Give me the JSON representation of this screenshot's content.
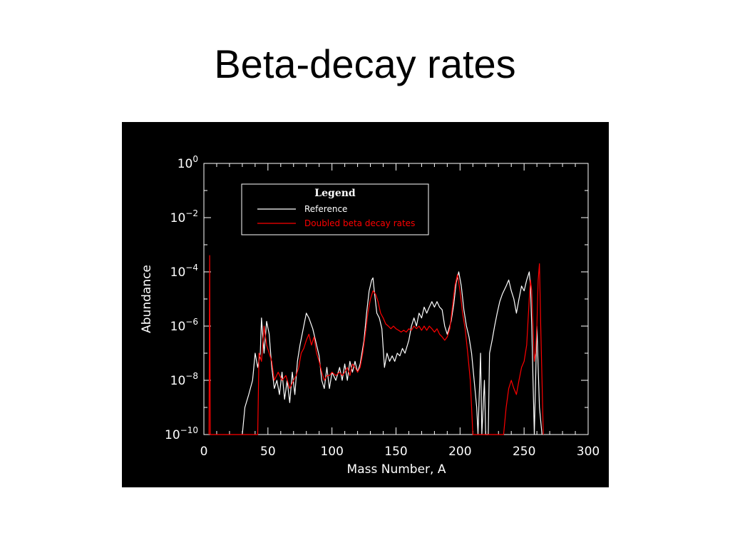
{
  "slide": {
    "title": "Beta-decay rates"
  },
  "colors": {
    "background": "#000000",
    "reference": "#ffffff",
    "doubled": "#ff0000",
    "axes": "#ffffff"
  },
  "chart_data": {
    "type": "line",
    "title": "",
    "xlabel": "Mass Number, A",
    "ylabel": "Abundance",
    "xlim": [
      0,
      300
    ],
    "ylim": [
      1e-10,
      1
    ],
    "yscale": "log",
    "grid": false,
    "legend": {
      "title": "Legend",
      "placement": "top-left"
    },
    "x_ticks": [
      {
        "v": 0,
        "label": "0"
      },
      {
        "v": 50,
        "label": "50"
      },
      {
        "v": 100,
        "label": "100"
      },
      {
        "v": 150,
        "label": "150"
      },
      {
        "v": 200,
        "label": "200"
      },
      {
        "v": 250,
        "label": "250"
      },
      {
        "v": 300,
        "label": "300"
      }
    ],
    "y_ticks": [
      {
        "v": 1,
        "base": "10",
        "exp": "0"
      },
      {
        "v": 0.01,
        "base": "10",
        "exp": "−2"
      },
      {
        "v": 0.0001,
        "base": "10",
        "exp": "−4"
      },
      {
        "v": 1e-06,
        "base": "10",
        "exp": "−6"
      },
      {
        "v": 1e-08,
        "base": "10",
        "exp": "−8"
      },
      {
        "v": 1e-10,
        "base": "10",
        "exp": "−10"
      }
    ],
    "series": [
      {
        "name": "Reference",
        "color": "#ffffff",
        "points": [
          [
            30,
            1e-10
          ],
          [
            32,
            1e-09
          ],
          [
            35,
            3e-09
          ],
          [
            38,
            1e-08
          ],
          [
            40,
            1e-07
          ],
          [
            42,
            3e-08
          ],
          [
            44,
            1e-07
          ],
          [
            45,
            2e-06
          ],
          [
            47,
            1e-07
          ],
          [
            49,
            1.5e-06
          ],
          [
            51,
            5e-07
          ],
          [
            53,
            3e-08
          ],
          [
            55,
            5e-09
          ],
          [
            57,
            1e-08
          ],
          [
            59,
            3e-09
          ],
          [
            61,
            2e-08
          ],
          [
            63,
            2e-09
          ],
          [
            65,
            1e-08
          ],
          [
            67,
            1.5e-09
          ],
          [
            69,
            2e-08
          ],
          [
            71,
            3e-09
          ],
          [
            73,
            5e-08
          ],
          [
            75,
            2e-07
          ],
          [
            78,
            1e-06
          ],
          [
            80,
            3e-06
          ],
          [
            82,
            2e-06
          ],
          [
            85,
            8e-07
          ],
          [
            88,
            2e-07
          ],
          [
            90,
            8e-08
          ],
          [
            92,
            1e-08
          ],
          [
            94,
            5e-09
          ],
          [
            96,
            3e-08
          ],
          [
            98,
            5e-09
          ],
          [
            100,
            2e-08
          ],
          [
            103,
            1e-08
          ],
          [
            106,
            3e-08
          ],
          [
            108,
            1e-08
          ],
          [
            110,
            4e-08
          ],
          [
            112,
            1e-08
          ],
          [
            114,
            5e-08
          ],
          [
            116,
            2e-08
          ],
          [
            118,
            5e-08
          ],
          [
            120,
            2e-08
          ],
          [
            122,
            4e-08
          ],
          [
            125,
            3e-07
          ],
          [
            127,
            3e-06
          ],
          [
            129,
            2e-05
          ],
          [
            131,
            5e-05
          ],
          [
            132,
            6e-05
          ],
          [
            133,
            2e-05
          ],
          [
            135,
            3e-06
          ],
          [
            137,
            2e-06
          ],
          [
            139,
            8e-07
          ],
          [
            141,
            3e-08
          ],
          [
            143,
            1e-07
          ],
          [
            145,
            5e-08
          ],
          [
            147,
            8e-08
          ],
          [
            149,
            5e-08
          ],
          [
            151,
            1e-07
          ],
          [
            153,
            8e-08
          ],
          [
            155,
            1.5e-07
          ],
          [
            157,
            1e-07
          ],
          [
            160,
            3e-07
          ],
          [
            162,
            1e-06
          ],
          [
            164,
            2e-06
          ],
          [
            166,
            1e-06
          ],
          [
            168,
            3e-06
          ],
          [
            170,
            2e-06
          ],
          [
            172,
            5e-06
          ],
          [
            174,
            3e-06
          ],
          [
            176,
            5e-06
          ],
          [
            178,
            8e-06
          ],
          [
            180,
            5e-06
          ],
          [
            182,
            8e-06
          ],
          [
            184,
            5e-06
          ],
          [
            186,
            4e-06
          ],
          [
            188,
            1e-06
          ],
          [
            190,
            5e-07
          ],
          [
            193,
            1.5e-06
          ],
          [
            195,
            6e-06
          ],
          [
            197,
            4e-05
          ],
          [
            199,
            0.0001
          ],
          [
            201,
            3e-05
          ],
          [
            203,
            4e-06
          ],
          [
            205,
            1e-06
          ],
          [
            207,
            4e-07
          ],
          [
            209,
            1e-07
          ],
          [
            211,
            1e-08
          ],
          [
            213,
            1e-09
          ],
          [
            214,
            1e-10
          ],
          [
            216,
            1e-07
          ],
          [
            217,
            1e-10
          ],
          [
            219,
            1e-08
          ],
          [
            220,
            1e-10
          ],
          [
            222,
            1e-10
          ],
          [
            223,
            1e-07
          ],
          [
            225,
            3e-07
          ],
          [
            227,
            1e-06
          ],
          [
            229,
            3e-06
          ],
          [
            231,
            8e-06
          ],
          [
            233,
            1.5e-05
          ],
          [
            236,
            3e-05
          ],
          [
            238,
            5e-05
          ],
          [
            240,
            2e-05
          ],
          [
            242,
            1e-05
          ],
          [
            244,
            3e-06
          ],
          [
            246,
            1e-05
          ],
          [
            248,
            3e-05
          ],
          [
            250,
            2e-05
          ],
          [
            252,
            5e-05
          ],
          [
            254,
            0.0001
          ],
          [
            255,
            3e-05
          ],
          [
            256,
            1e-06
          ],
          [
            257,
            1e-08
          ],
          [
            258,
            1e-10
          ],
          [
            259,
            1e-08
          ],
          [
            260,
            1e-06
          ],
          [
            262,
            1e-09
          ],
          [
            264,
            1e-10
          ]
        ]
      },
      {
        "name": "Doubled beta decay rates",
        "color": "#ff0000",
        "points": [
          [
            4,
            1e-10
          ],
          [
            4.5,
            0.0004
          ],
          [
            5,
            1e-10
          ],
          [
            42,
            1e-10
          ],
          [
            43,
            1e-07
          ],
          [
            45,
            5e-08
          ],
          [
            47,
            1e-06
          ],
          [
            49,
            2e-07
          ],
          [
            51,
            1e-07
          ],
          [
            53,
            5e-08
          ],
          [
            55,
            1e-08
          ],
          [
            58,
            2e-08
          ],
          [
            61,
            1e-08
          ],
          [
            64,
            1.5e-08
          ],
          [
            67,
            5e-09
          ],
          [
            70,
            1e-08
          ],
          [
            72,
            1.5e-08
          ],
          [
            74,
            3e-08
          ],
          [
            76,
            1e-07
          ],
          [
            78,
            1.5e-07
          ],
          [
            80,
            3e-07
          ],
          [
            82,
            5e-07
          ],
          [
            84,
            2e-07
          ],
          [
            86,
            4e-07
          ],
          [
            88,
            1e-07
          ],
          [
            90,
            5e-08
          ],
          [
            92,
            2e-08
          ],
          [
            94,
            1e-08
          ],
          [
            96,
            1.5e-08
          ],
          [
            98,
            1.5e-08
          ],
          [
            100,
            2e-08
          ],
          [
            103,
            1.5e-08
          ],
          [
            106,
            2e-08
          ],
          [
            108,
            1.5e-08
          ],
          [
            110,
            2e-08
          ],
          [
            112,
            3e-08
          ],
          [
            114,
            1.5e-08
          ],
          [
            116,
            4e-08
          ],
          [
            118,
            3e-08
          ],
          [
            120,
            2e-08
          ],
          [
            122,
            3e-08
          ],
          [
            124,
            1e-07
          ],
          [
            126,
            5e-07
          ],
          [
            128,
            3e-06
          ],
          [
            130,
            1e-05
          ],
          [
            132,
            2e-05
          ],
          [
            134,
            1.5e-05
          ],
          [
            136,
            8e-06
          ],
          [
            138,
            3e-06
          ],
          [
            140,
            2e-06
          ],
          [
            142,
            1.2e-06
          ],
          [
            144,
            1e-06
          ],
          [
            146,
            8e-07
          ],
          [
            148,
            1e-06
          ],
          [
            150,
            8e-07
          ],
          [
            152,
            7e-07
          ],
          [
            154,
            6e-07
          ],
          [
            156,
            7e-07
          ],
          [
            158,
            6e-07
          ],
          [
            160,
            8e-07
          ],
          [
            162,
            7e-07
          ],
          [
            164,
            1e-06
          ],
          [
            166,
            8e-07
          ],
          [
            168,
            1e-06
          ],
          [
            170,
            7e-07
          ],
          [
            172,
            1e-06
          ],
          [
            174,
            7e-07
          ],
          [
            176,
            1e-06
          ],
          [
            178,
            8e-07
          ],
          [
            180,
            6e-07
          ],
          [
            182,
            8e-07
          ],
          [
            184,
            5e-07
          ],
          [
            186,
            4e-07
          ],
          [
            188,
            3e-07
          ],
          [
            190,
            4e-07
          ],
          [
            192,
            8e-07
          ],
          [
            194,
            5e-06
          ],
          [
            196,
            3e-05
          ],
          [
            198,
            8e-05
          ],
          [
            200,
            2e-05
          ],
          [
            202,
            3e-06
          ],
          [
            204,
            8e-07
          ],
          [
            206,
            1e-07
          ],
          [
            208,
            1e-08
          ],
          [
            209,
            1e-09
          ],
          [
            210,
            1e-10
          ],
          [
            234,
            1e-10
          ],
          [
            236,
            1e-09
          ],
          [
            238,
            5e-09
          ],
          [
            240,
            1e-08
          ],
          [
            242,
            5e-09
          ],
          [
            244,
            3e-09
          ],
          [
            246,
            1e-08
          ],
          [
            248,
            3e-08
          ],
          [
            250,
            5e-08
          ],
          [
            252,
            2e-07
          ],
          [
            254,
            1e-05
          ],
          [
            255,
            5e-05
          ],
          [
            256,
            2e-05
          ],
          [
            257,
            1e-06
          ],
          [
            258,
            5e-08
          ],
          [
            259,
            1e-07
          ],
          [
            260,
            1e-06
          ],
          [
            261,
            5e-05
          ],
          [
            262,
            0.0002
          ],
          [
            263,
            1e-06
          ],
          [
            264,
            1e-08
          ],
          [
            265,
            1e-10
          ]
        ]
      }
    ]
  }
}
